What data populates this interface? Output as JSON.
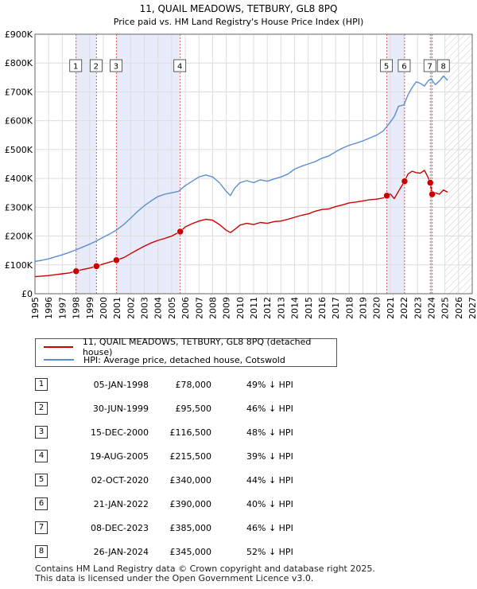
{
  "chart_data": {
    "type": "line",
    "title": "11, QUAIL MEADOWS, TETBURY, GL8 8PQ",
    "subtitle": "Price paid vs. HM Land Registry's House Price Index (HPI)",
    "xlim": [
      1995,
      2027
    ],
    "ylim": [
      0,
      900000
    ],
    "x_ticks": [
      "1995",
      "1996",
      "1997",
      "1998",
      "1999",
      "2000",
      "2001",
      "2002",
      "2003",
      "2004",
      "2005",
      "2006",
      "2007",
      "2008",
      "2009",
      "2010",
      "2011",
      "2012",
      "2013",
      "2014",
      "2015",
      "2016",
      "2017",
      "2018",
      "2019",
      "2020",
      "2021",
      "2022",
      "2023",
      "2024",
      "2025",
      "2026",
      "2027"
    ],
    "y_ticks": [
      {
        "value": 0,
        "label": "£0"
      },
      {
        "value": 100000,
        "label": "£100K"
      },
      {
        "value": 200000,
        "label": "£200K"
      },
      {
        "value": 300000,
        "label": "£300K"
      },
      {
        "value": 400000,
        "label": "£400K"
      },
      {
        "value": 500000,
        "label": "£500K"
      },
      {
        "value": 600000,
        "label": "£600K"
      },
      {
        "value": 700000,
        "label": "£700K"
      },
      {
        "value": 800000,
        "label": "£800K"
      },
      {
        "value": 900000,
        "label": "£900K"
      }
    ],
    "projection_start": 2025.0,
    "shaded_ranges": [
      [
        1998.01,
        1999.5
      ],
      [
        2000.96,
        2005.63
      ],
      [
        2020.75,
        2022.05
      ],
      [
        2023.93,
        2024.07
      ]
    ],
    "series": [
      {
        "name": "11, QUAIL MEADOWS, TETBURY, GL8 8PQ (detached house)",
        "color": "#cc0000",
        "x": [
          1995.0,
          1995.5,
          1996.0,
          1996.5,
          1997.0,
          1997.5,
          1998.01,
          1998.5,
          1999.0,
          1999.5,
          2000.0,
          2000.5,
          2000.96,
          2001.5,
          2002.0,
          2002.5,
          2003.0,
          2003.5,
          2004.0,
          2004.5,
          2005.0,
          2005.63,
          2006.0,
          2006.5,
          2007.0,
          2007.5,
          2008.0,
          2008.5,
          2009.0,
          2009.3,
          2009.6,
          2010.0,
          2010.5,
          2011.0,
          2011.5,
          2012.0,
          2012.5,
          2013.0,
          2013.5,
          2014.0,
          2014.5,
          2015.0,
          2015.5,
          2016.0,
          2016.5,
          2017.0,
          2017.5,
          2018.0,
          2018.5,
          2019.0,
          2019.5,
          2020.0,
          2020.5,
          2020.75,
          2021.0,
          2021.3,
          2021.6,
          2022.05,
          2022.3,
          2022.6,
          2022.9,
          2023.2,
          2023.5,
          2023.7,
          2023.93,
          2024.07,
          2024.3,
          2024.6,
          2024.9,
          2025.2
        ],
        "values": [
          59000,
          61000,
          63000,
          66000,
          69000,
          72000,
          78000,
          84000,
          89000,
          95500,
          103000,
          110000,
          116500,
          125000,
          139000,
          152000,
          165000,
          176000,
          185000,
          192000,
          200000,
          215500,
          232000,
          243000,
          252000,
          258000,
          255000,
          240000,
          220000,
          212000,
          222000,
          238000,
          244000,
          240000,
          247000,
          244000,
          250000,
          252000,
          258000,
          265000,
          272000,
          277000,
          286000,
          292000,
          294000,
          302000,
          308000,
          315000,
          318000,
          322000,
          326000,
          328000,
          332000,
          340000,
          346000,
          330000,
          355000,
          390000,
          415000,
          425000,
          420000,
          418000,
          428000,
          410000,
          385000,
          345000,
          350000,
          345000,
          360000,
          352000
        ]
      },
      {
        "name": "HPI: Average price, detached house, Cotswold",
        "color": "#5b8fd0",
        "x": [
          1995.0,
          1995.5,
          1996.0,
          1996.5,
          1997.0,
          1997.5,
          1998.0,
          1998.5,
          1999.0,
          1999.5,
          2000.0,
          2000.5,
          2001.0,
          2001.5,
          2002.0,
          2002.5,
          2003.0,
          2003.5,
          2004.0,
          2004.5,
          2005.0,
          2005.5,
          2006.0,
          2006.5,
          2007.0,
          2007.5,
          2008.0,
          2008.5,
          2009.0,
          2009.3,
          2009.6,
          2010.0,
          2010.5,
          2011.0,
          2011.5,
          2012.0,
          2012.5,
          2013.0,
          2013.5,
          2014.0,
          2014.5,
          2015.0,
          2015.5,
          2016.0,
          2016.5,
          2017.0,
          2017.5,
          2018.0,
          2018.5,
          2019.0,
          2019.5,
          2020.0,
          2020.5,
          2021.0,
          2021.3,
          2021.6,
          2022.0,
          2022.3,
          2022.6,
          2022.9,
          2023.2,
          2023.5,
          2023.8,
          2024.0,
          2024.3,
          2024.6,
          2024.9,
          2025.2
        ],
        "values": [
          112000,
          116000,
          121000,
          128000,
          135000,
          143000,
          152000,
          162000,
          172000,
          183000,
          196000,
          208000,
          222000,
          240000,
          262000,
          285000,
          305000,
          322000,
          337000,
          345000,
          350000,
          355000,
          375000,
          390000,
          405000,
          412000,
          405000,
          385000,
          355000,
          340000,
          365000,
          385000,
          392000,
          385000,
          395000,
          390000,
          398000,
          405000,
          415000,
          432000,
          442000,
          450000,
          458000,
          470000,
          478000,
          492000,
          505000,
          515000,
          522000,
          530000,
          540000,
          550000,
          565000,
          595000,
          615000,
          650000,
          655000,
          690000,
          715000,
          735000,
          730000,
          720000,
          740000,
          745000,
          725000,
          738000,
          755000,
          740000
        ]
      }
    ],
    "transactions_markers": [
      {
        "x": 1998.01,
        "y": 78000,
        "label": "1"
      },
      {
        "x": 1999.5,
        "y": 95500,
        "label": "2"
      },
      {
        "x": 2000.96,
        "y": 116500,
        "label": "3"
      },
      {
        "x": 2005.63,
        "y": 215500,
        "label": "4"
      },
      {
        "x": 2020.75,
        "y": 340000,
        "label": "5"
      },
      {
        "x": 2022.05,
        "y": 390000,
        "label": "6"
      },
      {
        "x": 2023.93,
        "y": 385000,
        "label": "7"
      },
      {
        "x": 2024.07,
        "y": 345000,
        "label": "8"
      }
    ]
  },
  "legend": {
    "property_label": "11, QUAIL MEADOWS, TETBURY, GL8 8PQ (detached house)",
    "hpi_label": "HPI: Average price, detached house, Cotswold",
    "property_color": "#cc0000",
    "hpi_color": "#5b8fd0"
  },
  "transactions": [
    {
      "num": "1",
      "date": "05-JAN-1998",
      "price": "£78,000",
      "hpi": "49% ↓ HPI"
    },
    {
      "num": "2",
      "date": "30-JUN-1999",
      "price": "£95,500",
      "hpi": "46% ↓ HPI"
    },
    {
      "num": "3",
      "date": "15-DEC-2000",
      "price": "£116,500",
      "hpi": "48% ↓ HPI"
    },
    {
      "num": "4",
      "date": "19-AUG-2005",
      "price": "£215,500",
      "hpi": "39% ↓ HPI"
    },
    {
      "num": "5",
      "date": "02-OCT-2020",
      "price": "£340,000",
      "hpi": "44% ↓ HPI"
    },
    {
      "num": "6",
      "date": "21-JAN-2022",
      "price": "£390,000",
      "hpi": "40% ↓ HPI"
    },
    {
      "num": "7",
      "date": "08-DEC-2023",
      "price": "£385,000",
      "hpi": "46% ↓ HPI"
    },
    {
      "num": "8",
      "date": "26-JAN-2024",
      "price": "£345,000",
      "hpi": "52% ↓ HPI"
    }
  ],
  "footer": {
    "line1": "Contains HM Land Registry data © Crown copyright and database right 2025.",
    "line2": "This data is licensed under the Open Government Licence v3.0."
  }
}
